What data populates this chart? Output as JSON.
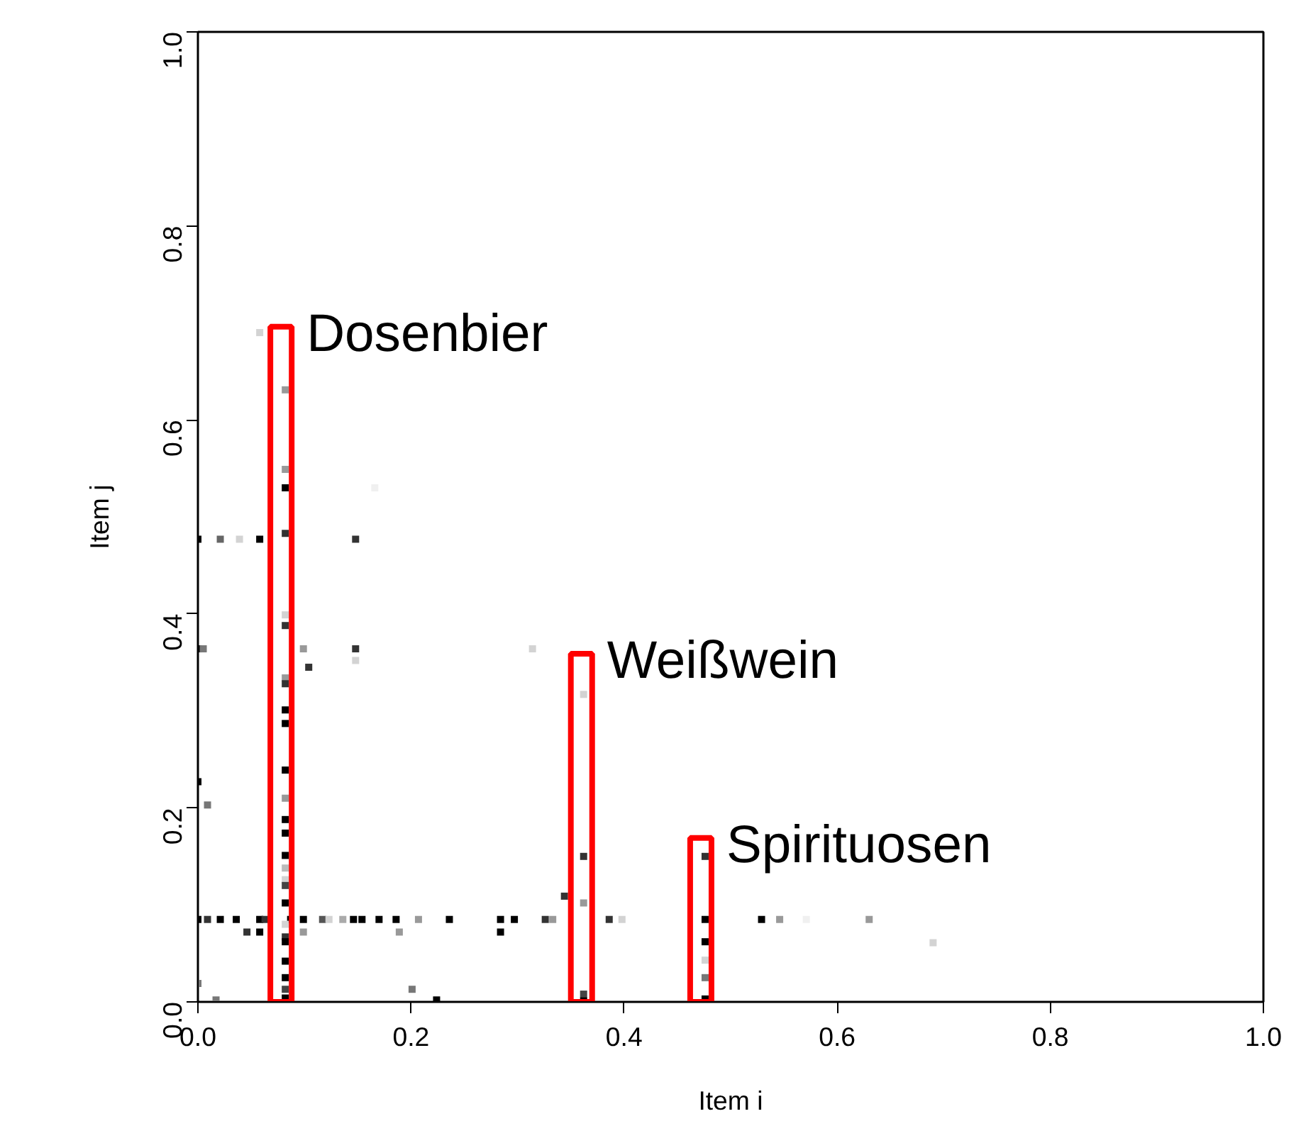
{
  "chart_data": {
    "type": "scatter",
    "xlabel": "Item i",
    "ylabel": "Item j",
    "xlim": [
      0,
      1
    ],
    "ylim": [
      0,
      1
    ],
    "xticks": [
      {
        "value": 0,
        "label": "0.0"
      },
      0.2,
      0.4,
      0.6,
      0.8,
      {
        "value": 1,
        "label": "1.0"
      }
    ],
    "yticks": [
      {
        "value": 0,
        "label": "0.0"
      },
      0.2,
      0.4,
      0.6,
      0.8,
      {
        "value": 1,
        "label": "1.0"
      }
    ],
    "grid": false,
    "marker": "square",
    "series": [
      {
        "x": [
          0.058,
          0.082,
          0.082,
          0.082,
          0.082,
          0.0,
          0.021,
          0.039,
          0.058,
          0.148,
          0.166,
          0.082,
          0.082,
          0.0,
          0.005,
          0.099,
          0.148,
          0.148,
          0.104,
          0.314,
          0.082,
          0.082,
          0.082,
          0.082,
          0.082,
          0.0,
          0.009,
          0.082,
          0.082,
          0.082,
          0.082,
          0.082,
          0.082,
          0.082,
          0.082,
          0.0,
          0.009,
          0.021,
          0.036,
          0.058,
          0.063,
          0.087,
          0.099,
          0.117,
          0.123,
          0.136,
          0.146,
          0.154,
          0.17,
          0.186,
          0.207,
          0.236,
          0.284,
          0.297,
          0.326,
          0.333,
          0.386,
          0.398,
          0.476,
          0.529,
          0.546,
          0.571,
          0.63,
          0.046,
          0.058,
          0.099,
          0.189,
          0.284,
          0.082,
          0.082,
          0.082,
          0.082,
          0.082,
          0.082,
          0.082,
          0.0,
          0.017,
          0.201,
          0.224,
          0.362,
          0.362,
          0.362,
          0.344,
          0.362,
          0.362,
          0.476,
          0.69,
          0.476,
          0.476,
          0.476,
          0.476
        ],
        "values": [
          0.69,
          0.631,
          0.549,
          0.53,
          0.483,
          0.477,
          0.477,
          0.477,
          0.477,
          0.477,
          0.53,
          0.399,
          0.388,
          0.364,
          0.364,
          0.364,
          0.364,
          0.352,
          0.345,
          0.364,
          0.334,
          0.328,
          0.301,
          0.287,
          0.239,
          0.227,
          0.203,
          0.21,
          0.188,
          0.174,
          0.151,
          0.138,
          0.126,
          0.12,
          0.102,
          0.085,
          0.085,
          0.085,
          0.085,
          0.085,
          0.085,
          0.085,
          0.085,
          0.085,
          0.085,
          0.085,
          0.085,
          0.085,
          0.085,
          0.085,
          0.085,
          0.085,
          0.085,
          0.085,
          0.085,
          0.085,
          0.085,
          0.085,
          0.085,
          0.085,
          0.085,
          0.085,
          0.085,
          0.072,
          0.072,
          0.072,
          0.072,
          0.072,
          0.08,
          0.067,
          0.062,
          0.042,
          0.025,
          0.013,
          0.004,
          0.019,
          0.002,
          0.013,
          0.002,
          0.317,
          0.15,
          0.102,
          0.109,
          0.008,
          0.001,
          0.15,
          0.061,
          0.062,
          0.043,
          0.025,
          0.003
        ],
        "colors": [
          "#d3d3d3",
          "#999999",
          "#999999",
          "#000000",
          "#333333",
          "#000000",
          "#666666",
          "#d3d3d3",
          "#000000",
          "#333333",
          "#f0f0f0",
          "#d3d3d3",
          "#333333",
          "#000000",
          "#777777",
          "#999999",
          "#333333",
          "#d3d3d3",
          "#333333",
          "#d3d3d3",
          "#999999",
          "#333333",
          "#000000",
          "#000000",
          "#000000",
          "#000000",
          "#777777",
          "#999999",
          "#000000",
          "#000000",
          "#000000",
          "#bbbbbb",
          "#d3d3d3",
          "#444444",
          "#000000",
          "#000000",
          "#333333",
          "#000000",
          "#000000",
          "#000000",
          "#333333",
          "#000000",
          "#000000",
          "#555555",
          "#d3d3d3",
          "#aaaaaa",
          "#000000",
          "#000000",
          "#000000",
          "#000000",
          "#999999",
          "#000000",
          "#000000",
          "#000000",
          "#333333",
          "#999999",
          "#333333",
          "#d3d3d3",
          "#000000",
          "#000000",
          "#999999",
          "#f0f0f0",
          "#999999",
          "#333333",
          "#000000",
          "#999999",
          "#999999",
          "#000000",
          "#d3d3d3",
          "#333333",
          "#000000",
          "#000000",
          "#000000",
          "#444444",
          "#000000",
          "#777777",
          "#777777",
          "#777777",
          "#000000",
          "#d3d3d3",
          "#333333",
          "#999999",
          "#333333",
          "#444444",
          "#000000",
          "#333333",
          "#d3d3d3",
          "#000000",
          "#d3d3d3",
          "#777777",
          "#000000"
        ]
      },
      {
        "type": "bar",
        "x": [
          0.078,
          0.36,
          0.472
        ],
        "values": [
          0.696,
          0.359,
          0.169
        ],
        "color": "#ff0000"
      }
    ],
    "annotations": [
      {
        "text": "Dosenbier",
        "x": 0.078,
        "y": 0.696
      },
      {
        "text": "Weißwein",
        "x": 0.36,
        "y": 0.359
      },
      {
        "text": "Spirituosen",
        "x": 0.472,
        "y": 0.169
      }
    ]
  }
}
